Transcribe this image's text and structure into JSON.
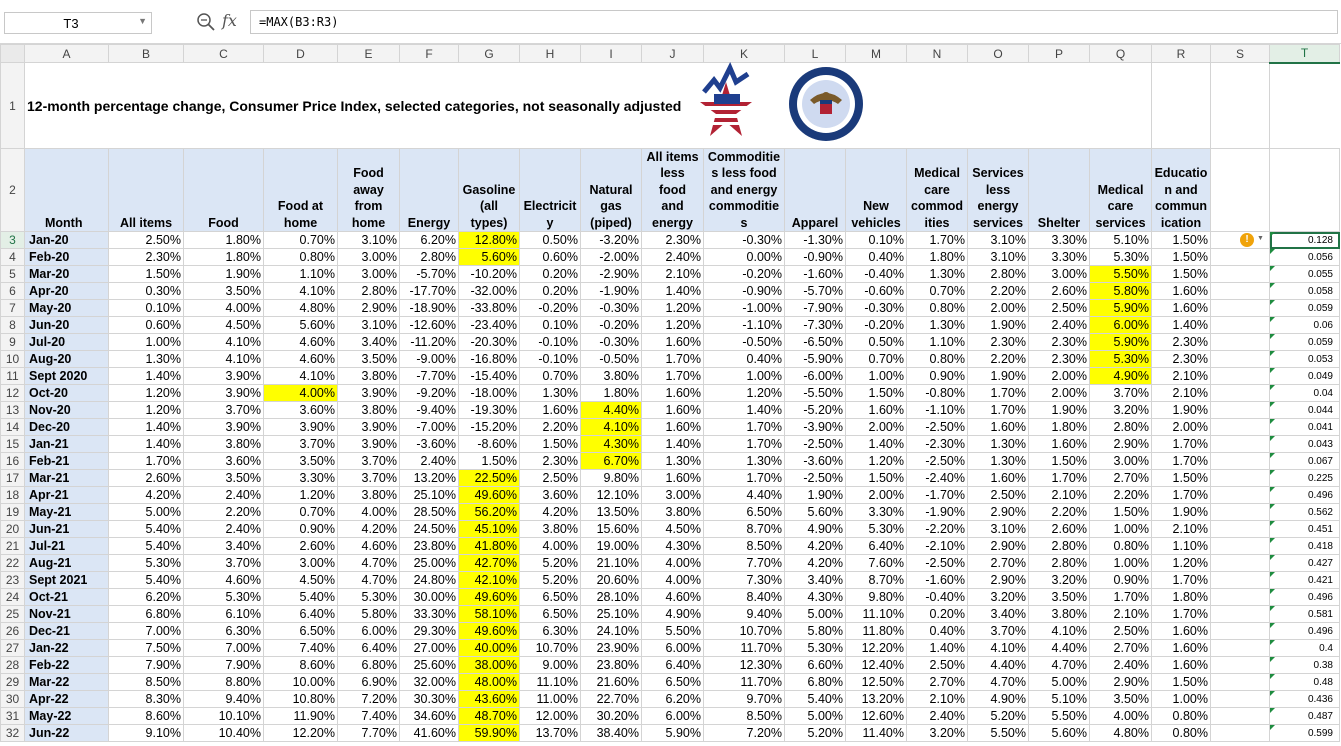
{
  "name_box": {
    "value": "T3"
  },
  "formula_bar": {
    "formula": "=MAX(B3:R3)",
    "search_icon": "zoom-icon",
    "fx_label": "fx"
  },
  "columns": [
    "A",
    "B",
    "C",
    "D",
    "E",
    "F",
    "G",
    "H",
    "I",
    "J",
    "K",
    "L",
    "M",
    "N",
    "O",
    "P",
    "Q",
    "R",
    "S",
    "T"
  ],
  "title": "12-month percentage change, Consumer Price Index, selected categories, not seasonally adjusted",
  "headers": [
    "Month",
    "All items",
    "Food",
    "Food at home",
    "Food away from home",
    "Energy",
    "Gasoline (all types)",
    "Electricity",
    "Natural gas (piped)",
    "All items less food and energy",
    "Commodities less food and energy commodities",
    "Apparel",
    "New vehicles",
    "Medical care commodities",
    "Services less energy services",
    "Shelter",
    "Medical care services",
    "Education and communication"
  ],
  "header_display": [
    "Month",
    "All items",
    "Food",
    "Food at<br>home",
    "Food<br>away<br>from<br>home",
    "Energy",
    "Gasoline<br>(all<br>types)",
    "Electricit<br>y",
    "Natural<br>gas<br>(piped)",
    "All items<br>less<br>food<br>and<br>energy",
    "Commoditie<br>s less food<br>and energy<br>commoditie<br>s",
    "Apparel",
    "New<br>vehicles",
    "Medical<br>care<br>commod<br>ities",
    "Services<br>less<br>energy<br>services",
    "Shelter",
    "Medical<br>care<br>services",
    "Educatio<br>n and<br>commun<br>ication"
  ],
  "warning_icon": "exclamation-warning-icon",
  "rows": [
    {
      "month": "Jan-20",
      "values": [
        "2.50%",
        "1.80%",
        "0.70%",
        "3.10%",
        "6.20%",
        "12.80%",
        "0.50%",
        "-3.20%",
        "2.30%",
        "-0.30%",
        "-1.30%",
        "0.10%",
        "1.70%",
        "3.10%",
        "3.30%",
        "5.10%",
        "1.50%"
      ],
      "hl": [
        6
      ],
      "max": "0.128"
    },
    {
      "month": "Feb-20",
      "values": [
        "2.30%",
        "1.80%",
        "0.80%",
        "3.00%",
        "2.80%",
        "5.60%",
        "0.60%",
        "-2.00%",
        "2.40%",
        "0.00%",
        "-0.90%",
        "0.40%",
        "1.80%",
        "3.10%",
        "3.30%",
        "5.30%",
        "1.50%"
      ],
      "hl": [
        6
      ],
      "max": "0.056"
    },
    {
      "month": "Mar-20",
      "values": [
        "1.50%",
        "1.90%",
        "1.10%",
        "3.00%",
        "-5.70%",
        "-10.20%",
        "0.20%",
        "-2.90%",
        "2.10%",
        "-0.20%",
        "-1.60%",
        "-0.40%",
        "1.30%",
        "2.80%",
        "3.00%",
        "5.50%",
        "1.50%"
      ],
      "hl": [
        16
      ],
      "max": "0.055"
    },
    {
      "month": "Apr-20",
      "values": [
        "0.30%",
        "3.50%",
        "4.10%",
        "2.80%",
        "-17.70%",
        "-32.00%",
        "0.20%",
        "-1.90%",
        "1.40%",
        "-0.90%",
        "-5.70%",
        "-0.60%",
        "0.70%",
        "2.20%",
        "2.60%",
        "5.80%",
        "1.60%"
      ],
      "hl": [
        16
      ],
      "max": "0.058"
    },
    {
      "month": "May-20",
      "values": [
        "0.10%",
        "4.00%",
        "4.80%",
        "2.90%",
        "-18.90%",
        "-33.80%",
        "-0.20%",
        "-0.30%",
        "1.20%",
        "-1.00%",
        "-7.90%",
        "-0.30%",
        "0.80%",
        "2.00%",
        "2.50%",
        "5.90%",
        "1.60%"
      ],
      "hl": [
        16
      ],
      "max": "0.059"
    },
    {
      "month": "Jun-20",
      "values": [
        "0.60%",
        "4.50%",
        "5.60%",
        "3.10%",
        "-12.60%",
        "-23.40%",
        "0.10%",
        "-0.20%",
        "1.20%",
        "-1.10%",
        "-7.30%",
        "-0.20%",
        "1.30%",
        "1.90%",
        "2.40%",
        "6.00%",
        "1.40%"
      ],
      "hl": [
        16
      ],
      "max": "0.06"
    },
    {
      "month": "Jul-20",
      "values": [
        "1.00%",
        "4.10%",
        "4.60%",
        "3.40%",
        "-11.20%",
        "-20.30%",
        "-0.10%",
        "-0.30%",
        "1.60%",
        "-0.50%",
        "-6.50%",
        "0.50%",
        "1.10%",
        "2.30%",
        "2.30%",
        "5.90%",
        "2.30%"
      ],
      "hl": [
        16
      ],
      "max": "0.059"
    },
    {
      "month": "Aug-20",
      "values": [
        "1.30%",
        "4.10%",
        "4.60%",
        "3.50%",
        "-9.00%",
        "-16.80%",
        "-0.10%",
        "-0.50%",
        "1.70%",
        "0.40%",
        "-5.90%",
        "0.70%",
        "0.80%",
        "2.20%",
        "2.30%",
        "5.30%",
        "2.30%"
      ],
      "hl": [
        16
      ],
      "max": "0.053"
    },
    {
      "month": "Sept 2020",
      "values": [
        "1.40%",
        "3.90%",
        "4.10%",
        "3.80%",
        "-7.70%",
        "-15.40%",
        "0.70%",
        "3.80%",
        "1.70%",
        "1.00%",
        "-6.00%",
        "1.00%",
        "0.90%",
        "1.90%",
        "2.00%",
        "4.90%",
        "2.10%"
      ],
      "hl": [
        16
      ],
      "max": "0.049"
    },
    {
      "month": "Oct-20",
      "values": [
        "1.20%",
        "3.90%",
        "4.00%",
        "3.90%",
        "-9.20%",
        "-18.00%",
        "1.30%",
        "1.80%",
        "1.60%",
        "1.20%",
        "-5.50%",
        "1.50%",
        "-0.80%",
        "1.70%",
        "2.00%",
        "3.70%",
        "2.10%"
      ],
      "hl": [
        3
      ],
      "max": "0.04"
    },
    {
      "month": "Nov-20",
      "values": [
        "1.20%",
        "3.70%",
        "3.60%",
        "3.80%",
        "-9.40%",
        "-19.30%",
        "1.60%",
        "4.40%",
        "1.60%",
        "1.40%",
        "-5.20%",
        "1.60%",
        "-1.10%",
        "1.70%",
        "1.90%",
        "3.20%",
        "1.90%"
      ],
      "hl": [
        8
      ],
      "max": "0.044"
    },
    {
      "month": "Dec-20",
      "values": [
        "1.40%",
        "3.90%",
        "3.90%",
        "3.90%",
        "-7.00%",
        "-15.20%",
        "2.20%",
        "4.10%",
        "1.60%",
        "1.70%",
        "-3.90%",
        "2.00%",
        "-2.50%",
        "1.60%",
        "1.80%",
        "2.80%",
        "2.00%"
      ],
      "hl": [
        8
      ],
      "max": "0.041"
    },
    {
      "month": "Jan-21",
      "values": [
        "1.40%",
        "3.80%",
        "3.70%",
        "3.90%",
        "-3.60%",
        "-8.60%",
        "1.50%",
        "4.30%",
        "1.40%",
        "1.70%",
        "-2.50%",
        "1.40%",
        "-2.30%",
        "1.30%",
        "1.60%",
        "2.90%",
        "1.70%"
      ],
      "hl": [
        8
      ],
      "max": "0.043"
    },
    {
      "month": "Feb-21",
      "values": [
        "1.70%",
        "3.60%",
        "3.50%",
        "3.70%",
        "2.40%",
        "1.50%",
        "2.30%",
        "6.70%",
        "1.30%",
        "1.30%",
        "-3.60%",
        "1.20%",
        "-2.50%",
        "1.30%",
        "1.50%",
        "3.00%",
        "1.70%"
      ],
      "hl": [
        8
      ],
      "max": "0.067"
    },
    {
      "month": "Mar-21",
      "values": [
        "2.60%",
        "3.50%",
        "3.30%",
        "3.70%",
        "13.20%",
        "22.50%",
        "2.50%",
        "9.80%",
        "1.60%",
        "1.70%",
        "-2.50%",
        "1.50%",
        "-2.40%",
        "1.60%",
        "1.70%",
        "2.70%",
        "1.50%"
      ],
      "hl": [
        6
      ],
      "max": "0.225"
    },
    {
      "month": "Apr-21",
      "values": [
        "4.20%",
        "2.40%",
        "1.20%",
        "3.80%",
        "25.10%",
        "49.60%",
        "3.60%",
        "12.10%",
        "3.00%",
        "4.40%",
        "1.90%",
        "2.00%",
        "-1.70%",
        "2.50%",
        "2.10%",
        "2.20%",
        "1.70%"
      ],
      "hl": [
        6
      ],
      "max": "0.496"
    },
    {
      "month": "May-21",
      "values": [
        "5.00%",
        "2.20%",
        "0.70%",
        "4.00%",
        "28.50%",
        "56.20%",
        "4.20%",
        "13.50%",
        "3.80%",
        "6.50%",
        "5.60%",
        "3.30%",
        "-1.90%",
        "2.90%",
        "2.20%",
        "1.50%",
        "1.90%"
      ],
      "hl": [
        6
      ],
      "max": "0.562"
    },
    {
      "month": "Jun-21",
      "values": [
        "5.40%",
        "2.40%",
        "0.90%",
        "4.20%",
        "24.50%",
        "45.10%",
        "3.80%",
        "15.60%",
        "4.50%",
        "8.70%",
        "4.90%",
        "5.30%",
        "-2.20%",
        "3.10%",
        "2.60%",
        "1.00%",
        "2.10%"
      ],
      "hl": [
        6
      ],
      "max": "0.451"
    },
    {
      "month": "Jul-21",
      "values": [
        "5.40%",
        "3.40%",
        "2.60%",
        "4.60%",
        "23.80%",
        "41.80%",
        "4.00%",
        "19.00%",
        "4.30%",
        "8.50%",
        "4.20%",
        "6.40%",
        "-2.10%",
        "2.90%",
        "2.80%",
        "0.80%",
        "1.10%"
      ],
      "hl": [
        6
      ],
      "max": "0.418"
    },
    {
      "month": "Aug-21",
      "values": [
        "5.30%",
        "3.70%",
        "3.00%",
        "4.70%",
        "25.00%",
        "42.70%",
        "5.20%",
        "21.10%",
        "4.00%",
        "7.70%",
        "4.20%",
        "7.60%",
        "-2.50%",
        "2.70%",
        "2.80%",
        "1.00%",
        "1.20%"
      ],
      "hl": [
        6
      ],
      "max": "0.427"
    },
    {
      "month": "Sept 2021",
      "values": [
        "5.40%",
        "4.60%",
        "4.50%",
        "4.70%",
        "24.80%",
        "42.10%",
        "5.20%",
        "20.60%",
        "4.00%",
        "7.30%",
        "3.40%",
        "8.70%",
        "-1.60%",
        "2.90%",
        "3.20%",
        "0.90%",
        "1.70%"
      ],
      "hl": [
        6
      ],
      "max": "0.421"
    },
    {
      "month": "Oct-21",
      "values": [
        "6.20%",
        "5.30%",
        "5.40%",
        "5.30%",
        "30.00%",
        "49.60%",
        "6.50%",
        "28.10%",
        "4.60%",
        "8.40%",
        "4.30%",
        "9.80%",
        "-0.40%",
        "3.20%",
        "3.50%",
        "1.70%",
        "1.80%"
      ],
      "hl": [
        6
      ],
      "max": "0.496"
    },
    {
      "month": "Nov-21",
      "values": [
        "6.80%",
        "6.10%",
        "6.40%",
        "5.80%",
        "33.30%",
        "58.10%",
        "6.50%",
        "25.10%",
        "4.90%",
        "9.40%",
        "5.00%",
        "11.10%",
        "0.20%",
        "3.40%",
        "3.80%",
        "2.10%",
        "1.70%"
      ],
      "hl": [
        6
      ],
      "max": "0.581"
    },
    {
      "month": "Dec-21",
      "values": [
        "7.00%",
        "6.30%",
        "6.50%",
        "6.00%",
        "29.30%",
        "49.60%",
        "6.30%",
        "24.10%",
        "5.50%",
        "10.70%",
        "5.80%",
        "11.80%",
        "0.40%",
        "3.70%",
        "4.10%",
        "2.50%",
        "1.60%"
      ],
      "hl": [
        6
      ],
      "max": "0.496"
    },
    {
      "month": "Jan-22",
      "values": [
        "7.50%",
        "7.00%",
        "7.40%",
        "6.40%",
        "27.00%",
        "40.00%",
        "10.70%",
        "23.90%",
        "6.00%",
        "11.70%",
        "5.30%",
        "12.20%",
        "1.40%",
        "4.10%",
        "4.40%",
        "2.70%",
        "1.60%"
      ],
      "hl": [
        6
      ],
      "max": "0.4"
    },
    {
      "month": "Feb-22",
      "values": [
        "7.90%",
        "7.90%",
        "8.60%",
        "6.80%",
        "25.60%",
        "38.00%",
        "9.00%",
        "23.80%",
        "6.40%",
        "12.30%",
        "6.60%",
        "12.40%",
        "2.50%",
        "4.40%",
        "4.70%",
        "2.40%",
        "1.60%"
      ],
      "hl": [
        6
      ],
      "max": "0.38"
    },
    {
      "month": "Mar-22",
      "values": [
        "8.50%",
        "8.80%",
        "10.00%",
        "6.90%",
        "32.00%",
        "48.00%",
        "11.10%",
        "21.60%",
        "6.50%",
        "11.70%",
        "6.80%",
        "12.50%",
        "2.70%",
        "4.70%",
        "5.00%",
        "2.90%",
        "1.50%"
      ],
      "hl": [
        6
      ],
      "max": "0.48"
    },
    {
      "month": "Apr-22",
      "values": [
        "8.30%",
        "9.40%",
        "10.80%",
        "7.20%",
        "30.30%",
        "43.60%",
        "11.00%",
        "22.70%",
        "6.20%",
        "9.70%",
        "5.40%",
        "13.20%",
        "2.10%",
        "4.90%",
        "5.10%",
        "3.50%",
        "1.00%"
      ],
      "hl": [
        6
      ],
      "max": "0.436"
    },
    {
      "month": "May-22",
      "values": [
        "8.60%",
        "10.10%",
        "11.90%",
        "7.40%",
        "34.60%",
        "48.70%",
        "12.00%",
        "30.20%",
        "6.00%",
        "8.50%",
        "5.00%",
        "12.60%",
        "2.40%",
        "5.20%",
        "5.50%",
        "4.00%",
        "0.80%"
      ],
      "hl": [
        6
      ],
      "max": "0.487"
    },
    {
      "month": "Jun-22",
      "values": [
        "9.10%",
        "10.40%",
        "12.20%",
        "7.70%",
        "41.60%",
        "59.90%",
        "13.70%",
        "38.40%",
        "5.90%",
        "7.20%",
        "5.20%",
        "11.40%",
        "3.20%",
        "5.50%",
        "5.60%",
        "4.80%",
        "0.80%"
      ],
      "hl": [
        6
      ],
      "max": "0.599"
    }
  ]
}
